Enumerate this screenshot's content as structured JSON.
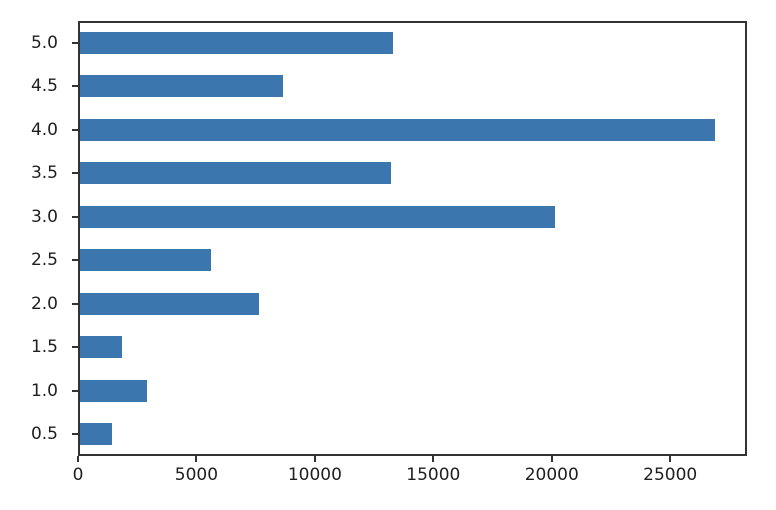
{
  "chart_data": {
    "type": "bar",
    "orientation": "horizontal",
    "title": "",
    "xlabel": "",
    "ylabel": "",
    "categories": [
      "0.5",
      "1.0",
      "1.5",
      "2.0",
      "2.5",
      "3.0",
      "3.5",
      "4.0",
      "4.5",
      "5.0"
    ],
    "values": [
      1370,
      2811,
      1791,
      7551,
      5550,
      20047,
      13136,
      26818,
      8551,
      13211
    ],
    "ytick_labels_top_to_bottom": [
      "5.0",
      "4.5",
      "4.0",
      "3.5",
      "3.0",
      "2.5",
      "2.0",
      "1.5",
      "1.0",
      "0.5"
    ],
    "xticks": [
      0,
      5000,
      10000,
      15000,
      20000,
      25000
    ],
    "xtick_labels": [
      "0",
      "5000",
      "10000",
      "15000",
      "20000",
      "25000"
    ],
    "xlim": [
      0,
      28159
    ],
    "grid": false,
    "legend": "none",
    "bar_color": "#3b76af",
    "axis_color": "#333333",
    "text_color": "#1f1f1f",
    "background_color": "#ffffff"
  }
}
